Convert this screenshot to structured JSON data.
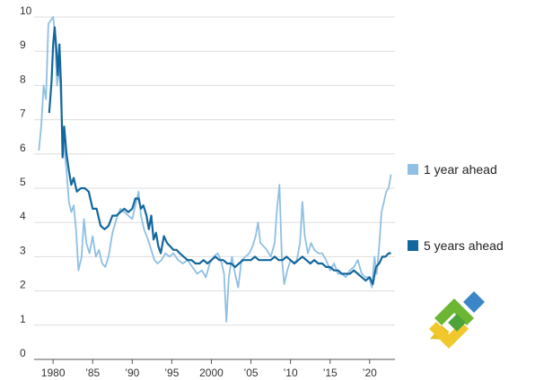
{
  "chart_data": {
    "type": "line",
    "title": "",
    "xlabel": "",
    "ylabel": "",
    "xlim": [
      1977.6,
      2023.2
    ],
    "ylim": [
      0,
      10
    ],
    "y_ticks": [
      "0",
      "1",
      "2",
      "3",
      "4",
      "5",
      "6",
      "7",
      "8",
      "9",
      "10"
    ],
    "x_ticks": [
      {
        "x": 1980,
        "label": "1980"
      },
      {
        "x": 1985,
        "label": "’85"
      },
      {
        "x": 1990,
        "label": "’90"
      },
      {
        "x": 1995,
        "label": "’95"
      },
      {
        "x": 2000,
        "label": "2000"
      },
      {
        "x": 2005,
        "label": "’05"
      },
      {
        "x": 2010,
        "label": "’10"
      },
      {
        "x": 2015,
        "label": "’15"
      },
      {
        "x": 2020,
        "label": "’20"
      }
    ],
    "grid": "horizontal",
    "legend_position": "right",
    "series": [
      {
        "name": "1 year ahead",
        "color": "#8fbfe3",
        "points": [
          [
            1978.2,
            6.1
          ],
          [
            1978.5,
            6.8
          ],
          [
            1978.8,
            8.0
          ],
          [
            1979.1,
            7.6
          ],
          [
            1979.4,
            9.8
          ],
          [
            1979.7,
            9.9
          ],
          [
            1980.0,
            10.0
          ],
          [
            1980.2,
            9.6
          ],
          [
            1980.5,
            8.0
          ],
          [
            1980.8,
            8.5
          ],
          [
            1981.1,
            7.0
          ],
          [
            1981.4,
            6.2
          ],
          [
            1981.7,
            5.5
          ],
          [
            1982.0,
            4.6
          ],
          [
            1982.3,
            4.3
          ],
          [
            1982.6,
            4.5
          ],
          [
            1982.9,
            3.8
          ],
          [
            1983.2,
            2.6
          ],
          [
            1983.6,
            3.0
          ],
          [
            1983.9,
            4.1
          ],
          [
            1984.2,
            3.4
          ],
          [
            1984.6,
            3.1
          ],
          [
            1985.0,
            3.6
          ],
          [
            1985.4,
            3.0
          ],
          [
            1985.8,
            3.2
          ],
          [
            1986.2,
            2.8
          ],
          [
            1986.6,
            2.7
          ],
          [
            1987.0,
            3.0
          ],
          [
            1987.5,
            3.7
          ],
          [
            1988.0,
            4.1
          ],
          [
            1988.5,
            4.4
          ],
          [
            1989.0,
            4.3
          ],
          [
            1989.5,
            4.2
          ],
          [
            1990.0,
            4.1
          ],
          [
            1990.5,
            4.6
          ],
          [
            1990.8,
            4.9
          ],
          [
            1991.1,
            4.2
          ],
          [
            1991.5,
            3.8
          ],
          [
            1992.0,
            3.5
          ],
          [
            1992.4,
            3.2
          ],
          [
            1992.8,
            2.9
          ],
          [
            1993.2,
            2.8
          ],
          [
            1993.7,
            2.9
          ],
          [
            1994.2,
            3.1
          ],
          [
            1994.7,
            3.0
          ],
          [
            1995.2,
            3.1
          ],
          [
            1995.8,
            2.9
          ],
          [
            1996.4,
            2.8
          ],
          [
            1997.0,
            2.9
          ],
          [
            1997.6,
            2.7
          ],
          [
            1998.2,
            2.5
          ],
          [
            1998.8,
            2.6
          ],
          [
            1999.3,
            2.4
          ],
          [
            1999.8,
            2.8
          ],
          [
            2000.3,
            3.0
          ],
          [
            2000.8,
            3.1
          ],
          [
            2001.2,
            2.9
          ],
          [
            2001.6,
            2.5
          ],
          [
            2001.9,
            1.1
          ],
          [
            2002.2,
            2.4
          ],
          [
            2002.6,
            3.0
          ],
          [
            2003.0,
            2.5
          ],
          [
            2003.4,
            2.1
          ],
          [
            2003.8,
            2.9
          ],
          [
            2004.3,
            3.0
          ],
          [
            2004.8,
            3.1
          ],
          [
            2005.2,
            3.3
          ],
          [
            2005.6,
            3.6
          ],
          [
            2005.9,
            4.0
          ],
          [
            2006.2,
            3.4
          ],
          [
            2006.6,
            3.3
          ],
          [
            2007.0,
            3.2
          ],
          [
            2007.5,
            3.0
          ],
          [
            2008.0,
            3.4
          ],
          [
            2008.3,
            4.4
          ],
          [
            2008.6,
            5.1
          ],
          [
            2008.9,
            3.0
          ],
          [
            2009.2,
            2.2
          ],
          [
            2009.6,
            2.6
          ],
          [
            2010.0,
            2.9
          ],
          [
            2010.4,
            2.8
          ],
          [
            2010.8,
            2.9
          ],
          [
            2011.2,
            3.4
          ],
          [
            2011.5,
            4.6
          ],
          [
            2011.8,
            3.6
          ],
          [
            2012.2,
            3.1
          ],
          [
            2012.6,
            3.4
          ],
          [
            2013.0,
            3.2
          ],
          [
            2013.5,
            3.1
          ],
          [
            2014.0,
            3.1
          ],
          [
            2014.5,
            2.9
          ],
          [
            2015.0,
            2.6
          ],
          [
            2015.5,
            2.8
          ],
          [
            2016.0,
            2.5
          ],
          [
            2016.5,
            2.5
          ],
          [
            2017.0,
            2.4
          ],
          [
            2017.5,
            2.6
          ],
          [
            2018.0,
            2.7
          ],
          [
            2018.5,
            2.9
          ],
          [
            2019.0,
            2.5
          ],
          [
            2019.5,
            2.4
          ],
          [
            2019.9,
            2.4
          ],
          [
            2020.3,
            2.1
          ],
          [
            2020.6,
            3.0
          ],
          [
            2020.9,
            2.5
          ],
          [
            2021.2,
            3.3
          ],
          [
            2021.5,
            4.3
          ],
          [
            2021.8,
            4.6
          ],
          [
            2022.1,
            4.9
          ],
          [
            2022.4,
            5.0
          ],
          [
            2022.7,
            5.4
          ]
        ]
      },
      {
        "name": "5 years ahead",
        "color": "#14679c",
        "points": [
          [
            1979.5,
            7.2
          ],
          [
            1979.8,
            8.1
          ],
          [
            1980.0,
            9.2
          ],
          [
            1980.2,
            9.7
          ],
          [
            1980.4,
            9.1
          ],
          [
            1980.6,
            8.3
          ],
          [
            1980.8,
            9.2
          ],
          [
            1981.0,
            8.0
          ],
          [
            1981.2,
            5.9
          ],
          [
            1981.4,
            6.8
          ],
          [
            1981.7,
            6.0
          ],
          [
            1982.0,
            5.5
          ],
          [
            1982.3,
            5.1
          ],
          [
            1982.6,
            5.3
          ],
          [
            1983.0,
            4.9
          ],
          [
            1983.5,
            5.0
          ],
          [
            1984.0,
            5.0
          ],
          [
            1984.5,
            4.9
          ],
          [
            1985.0,
            4.4
          ],
          [
            1985.5,
            4.4
          ],
          [
            1986.0,
            3.9
          ],
          [
            1986.5,
            3.8
          ],
          [
            1987.0,
            3.9
          ],
          [
            1987.5,
            4.2
          ],
          [
            1988.0,
            4.2
          ],
          [
            1988.5,
            4.3
          ],
          [
            1989.0,
            4.4
          ],
          [
            1989.5,
            4.3
          ],
          [
            1990.0,
            4.4
          ],
          [
            1990.4,
            4.7
          ],
          [
            1990.8,
            4.7
          ],
          [
            1991.1,
            4.4
          ],
          [
            1991.4,
            4.5
          ],
          [
            1991.8,
            4.2
          ],
          [
            1992.1,
            3.8
          ],
          [
            1992.4,
            4.2
          ],
          [
            1992.7,
            3.5
          ],
          [
            1993.0,
            3.7
          ],
          [
            1993.3,
            3.3
          ],
          [
            1993.6,
            3.1
          ],
          [
            1994.0,
            3.6
          ],
          [
            1994.4,
            3.4
          ],
          [
            1994.8,
            3.3
          ],
          [
            1995.2,
            3.2
          ],
          [
            1995.6,
            3.2
          ],
          [
            1996.0,
            3.1
          ],
          [
            1996.5,
            3.0
          ],
          [
            1997.0,
            2.9
          ],
          [
            1997.5,
            2.9
          ],
          [
            1998.0,
            2.8
          ],
          [
            1998.5,
            2.8
          ],
          [
            1999.0,
            2.9
          ],
          [
            1999.5,
            2.8
          ],
          [
            2000.0,
            2.9
          ],
          [
            2000.5,
            3.0
          ],
          [
            2001.0,
            2.9
          ],
          [
            2001.5,
            2.9
          ],
          [
            2002.0,
            2.8
          ],
          [
            2002.5,
            2.8
          ],
          [
            2003.0,
            2.7
          ],
          [
            2003.5,
            2.8
          ],
          [
            2004.0,
            2.9
          ],
          [
            2004.5,
            2.9
          ],
          [
            2005.0,
            2.9
          ],
          [
            2005.5,
            3.0
          ],
          [
            2006.0,
            2.9
          ],
          [
            2006.5,
            2.9
          ],
          [
            2007.0,
            2.9
          ],
          [
            2007.5,
            2.9
          ],
          [
            2008.0,
            3.0
          ],
          [
            2008.5,
            2.9
          ],
          [
            2009.0,
            2.9
          ],
          [
            2009.5,
            3.0
          ],
          [
            2010.0,
            2.9
          ],
          [
            2010.5,
            2.8
          ],
          [
            2011.0,
            2.9
          ],
          [
            2011.5,
            3.0
          ],
          [
            2012.0,
            2.9
          ],
          [
            2012.5,
            2.8
          ],
          [
            2013.0,
            2.9
          ],
          [
            2013.5,
            2.8
          ],
          [
            2014.0,
            2.8
          ],
          [
            2014.5,
            2.7
          ],
          [
            2015.0,
            2.7
          ],
          [
            2015.5,
            2.6
          ],
          [
            2016.0,
            2.6
          ],
          [
            2016.5,
            2.5
          ],
          [
            2017.0,
            2.5
          ],
          [
            2017.5,
            2.5
          ],
          [
            2018.0,
            2.6
          ],
          [
            2018.5,
            2.5
          ],
          [
            2019.0,
            2.4
          ],
          [
            2019.5,
            2.3
          ],
          [
            2020.0,
            2.4
          ],
          [
            2020.4,
            2.2
          ],
          [
            2020.8,
            2.7
          ],
          [
            2021.2,
            2.8
          ],
          [
            2021.6,
            3.0
          ],
          [
            2022.0,
            3.0
          ],
          [
            2022.4,
            3.1
          ],
          [
            2022.7,
            3.1
          ]
        ]
      }
    ]
  }
}
